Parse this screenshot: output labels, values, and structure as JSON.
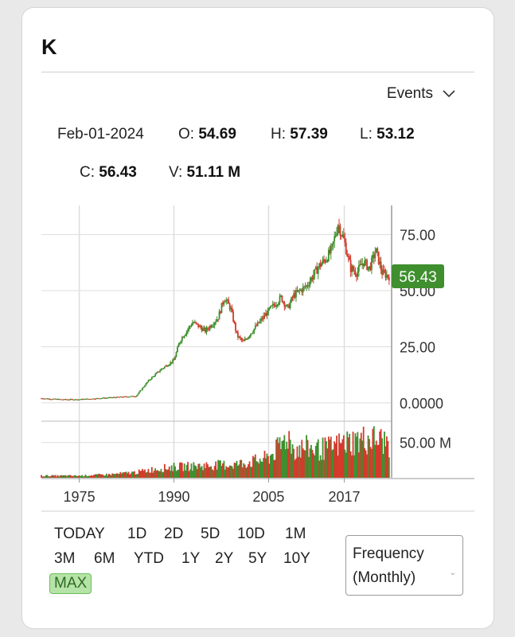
{
  "ticker": "K",
  "events_label": "Events",
  "ohlc": {
    "date": "Feb-01-2024",
    "open_label": "O:",
    "open": "54.69",
    "high_label": "H:",
    "high": "57.39",
    "low_label": "L:",
    "low": "53.12",
    "close_label": "C:",
    "close": "56.43",
    "volume_label": "V:",
    "volume": "51.11 M"
  },
  "periods": [
    "TODAY",
    "1D",
    "2D",
    "5D",
    "10D",
    "1M",
    "3M",
    "6M",
    "YTD",
    "1Y",
    "2Y",
    "5Y",
    "10Y",
    "MAX"
  ],
  "active_period": "MAX",
  "frequency": {
    "line1": "Frequency",
    "line2": "(Monthly)"
  },
  "colors": {
    "up": "#3f8f2f",
    "down": "#d33a2c",
    "last_price_badge": "#3f8f2f",
    "grid": "#dddddd"
  },
  "chart_data": {
    "type": "candlestick",
    "price": {
      "x": [
        1969,
        1972,
        1975,
        1978,
        1981,
        1984,
        1986,
        1988,
        1990,
        1991,
        1993,
        1995,
        1997,
        1998,
        1999,
        2000,
        2001,
        2003,
        2005,
        2007,
        2008,
        2009,
        2011,
        2013,
        2014,
        2015,
        2016,
        2017,
        2018,
        2019,
        2020,
        2021,
        2022,
        2023,
        2024
      ],
      "y": [
        2,
        1.5,
        1.5,
        2,
        2.5,
        3,
        10,
        15,
        19,
        28,
        36,
        32,
        38,
        47,
        42,
        30,
        27,
        34,
        41,
        47,
        42,
        48,
        52,
        61,
        64,
        68,
        80,
        72,
        60,
        58,
        63,
        60,
        68,
        58,
        56.43
      ]
    },
    "volume": {
      "x": [
        1969,
        1975,
        1980,
        1984,
        1987,
        1990,
        1995,
        2000,
        2003,
        2005,
        2007,
        2008,
        2009,
        2011,
        2013,
        2015,
        2017,
        2019,
        2021,
        2023,
        2024
      ],
      "y": [
        3,
        3,
        5,
        8,
        13,
        16,
        18,
        20,
        25,
        30,
        48,
        65,
        42,
        45,
        42,
        45,
        52,
        55,
        58,
        55,
        51.11
      ]
    },
    "y_ticks": [
      "0.0000",
      "25.00",
      "50.00",
      "75.00"
    ],
    "y_tick_values": [
      0,
      25,
      50,
      75
    ],
    "ylim": [
      -5,
      88
    ],
    "volume_tick": "50.00 M",
    "volume_tick_value": 50,
    "volume_ylim": [
      0,
      70
    ],
    "x_ticks": [
      "1975",
      "1990",
      "2005",
      "2017"
    ],
    "x_tick_values": [
      1975,
      1990,
      2005,
      2017
    ],
    "xlim": [
      1969,
      2024.5
    ],
    "last_price": "56.43",
    "last_price_value": 56.43,
    "grid": true
  }
}
